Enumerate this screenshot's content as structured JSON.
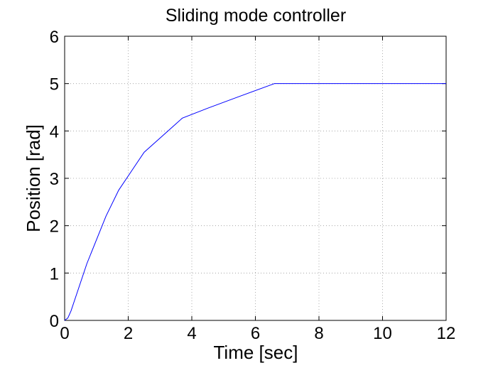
{
  "chart_data": {
    "type": "line",
    "title": "Sliding mode controller",
    "x_label": "Time [sec]",
    "y_label": "Position [rad]",
    "x": [
      0,
      0.1,
      0.2,
      0.4,
      0.7,
      1.0,
      1.3,
      1.7,
      2.1,
      2.5,
      3.0,
      3.5,
      3.7,
      4.5,
      5.5,
      6.6,
      12
    ],
    "series": [
      {
        "name": "Position",
        "color": "#0000ff",
        "values": [
          0,
          0.05,
          0.2,
          0.6,
          1.2,
          1.7,
          2.2,
          2.75,
          3.15,
          3.55,
          3.85,
          4.15,
          4.27,
          4.48,
          4.73,
          5.0,
          5.0
        ]
      }
    ],
    "xlim": [
      0,
      12
    ],
    "xticks": [
      0,
      2,
      4,
      6,
      8,
      10,
      12
    ],
    "ylim": [
      0,
      6
    ],
    "yticks": [
      0,
      1,
      2,
      3,
      4,
      5,
      6
    ],
    "grid": true
  }
}
